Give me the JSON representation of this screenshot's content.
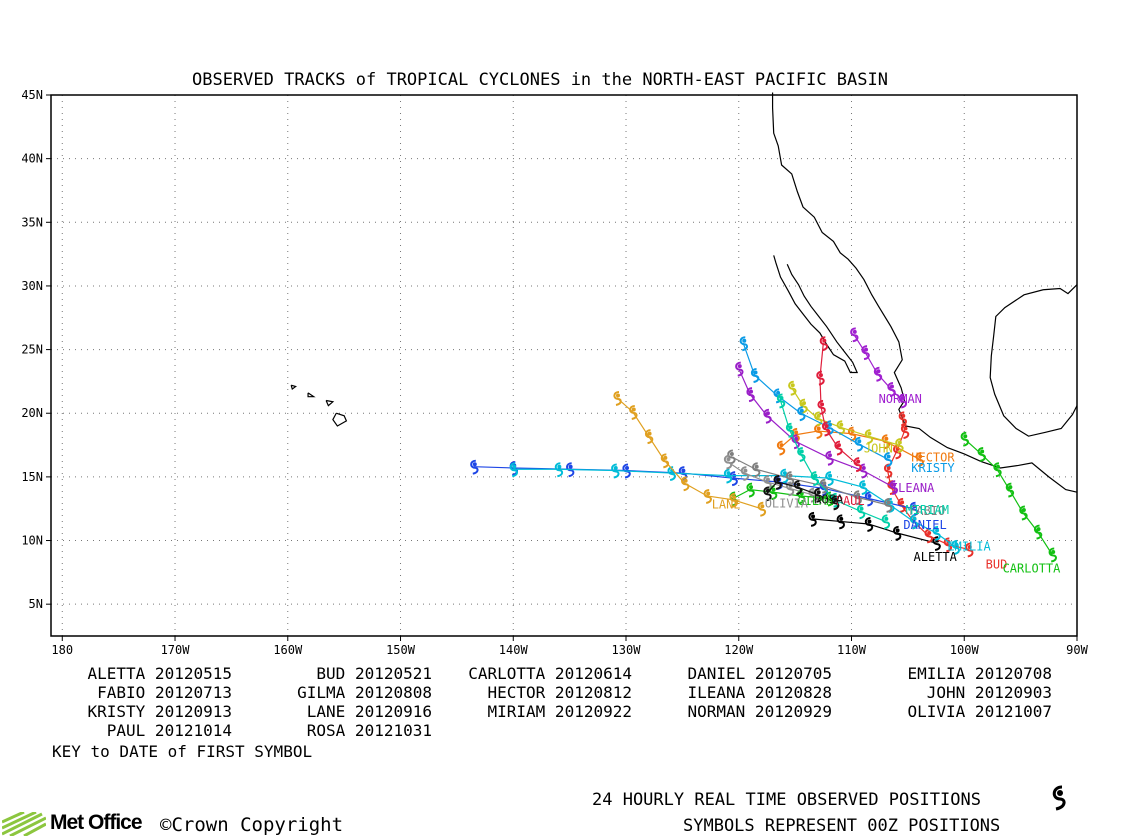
{
  "title": "OBSERVED TRACKS of TROPICAL CYCLONES in the NORTH-EAST PACIFIC BASIN",
  "axes": {
    "lon_labels": [
      "180",
      "170W",
      "160W",
      "150W",
      "140W",
      "130W",
      "120W",
      "110W",
      "100W",
      "90W"
    ],
    "lon_values": [
      -180,
      -170,
      -160,
      -150,
      -140,
      -130,
      -120,
      -110,
      -100,
      -90
    ],
    "lat_labels": [
      "5N",
      "10N",
      "15N",
      "20N",
      "25N",
      "30N",
      "35N",
      "40N",
      "45N"
    ],
    "lat_values": [
      5,
      10,
      15,
      20,
      25,
      30,
      35,
      40,
      45
    ],
    "lon_range": [
      -181,
      -90
    ],
    "lat_range": [
      2.5,
      45
    ],
    "grid": "dotted"
  },
  "storms": [
    {
      "name": "ALETTA",
      "date": "20120515",
      "color": "#000000",
      "points": [
        [
          -102.5,
          9.8
        ],
        [
          -106,
          10.6
        ],
        [
          -108.5,
          11.3
        ],
        [
          -111,
          11.5
        ],
        [
          -113.5,
          11.7
        ]
      ],
      "label_pos": [
        -104.5,
        8.4
      ]
    },
    {
      "name": "BUD",
      "date": "20120521",
      "color": "#e8302a",
      "points": [
        [
          -99.6,
          9.3
        ],
        [
          -101.5,
          9.7
        ],
        [
          -103.2,
          10.4
        ],
        [
          -104.5,
          11.5
        ],
        [
          -105.6,
          12.8
        ],
        [
          -106.5,
          14.2
        ],
        [
          -106.8,
          15.5
        ],
        [
          -106,
          17
        ],
        [
          -105.3,
          18.6
        ],
        [
          -105.5,
          19.6
        ]
      ],
      "label_pos": [
        -98.1,
        7.8
      ]
    },
    {
      "name": "CARLOTTA",
      "date": "20120614",
      "color": "#12c012",
      "points": [
        [
          -92.2,
          8.9
        ],
        [
          -93.5,
          10.7
        ],
        [
          -94.8,
          12.2
        ],
        [
          -96,
          14
        ],
        [
          -97.1,
          15.6
        ],
        [
          -98.5,
          16.8
        ],
        [
          -100,
          18
        ]
      ],
      "label_pos": [
        -96.6,
        7.5
      ]
    },
    {
      "name": "DANIEL",
      "date": "20120705",
      "color": "#1e46e6",
      "points": [
        [
          -104.5,
          12.5
        ],
        [
          -108.5,
          13.3
        ],
        [
          -112.5,
          14.1
        ],
        [
          -116.5,
          14.6
        ],
        [
          -120.5,
          14.9
        ],
        [
          -125,
          15.3
        ],
        [
          -130,
          15.5
        ],
        [
          -135,
          15.6
        ],
        [
          -140,
          15.7
        ],
        [
          -143.5,
          15.8
        ]
      ],
      "label_pos": [
        -105.4,
        10.9
      ]
    },
    {
      "name": "EMILIA",
      "date": "20120708",
      "color": "#00bcd8",
      "points": [
        [
          -100.8,
          9.5
        ],
        [
          -102.5,
          10.6
        ],
        [
          -104.5,
          11.5
        ],
        [
          -106.6,
          12.8
        ],
        [
          -109,
          14.2
        ],
        [
          -112,
          14.9
        ],
        [
          -116,
          15.1
        ],
        [
          -121,
          15.1
        ],
        [
          -126,
          15.3
        ],
        [
          -131,
          15.5
        ],
        [
          -136,
          15.6
        ],
        [
          -140,
          15.6
        ]
      ],
      "label_pos": [
        -101.5,
        9.2
      ]
    },
    {
      "name": "FABIO",
      "date": "20120713",
      "color": "#7f7f7f",
      "points": [
        [
          -106.8,
          12.8
        ],
        [
          -109.5,
          13.4
        ],
        [
          -112.5,
          14.3
        ],
        [
          -115.5,
          14.9
        ],
        [
          -118.5,
          15.6
        ],
        [
          -120.7,
          16.6
        ]
      ],
      "label_pos": [
        -104.9,
        12
      ]
    },
    {
      "name": "GILMA",
      "date": "20120808",
      "color": "#12c012",
      "points": [
        [
          -112,
          13.3
        ],
        [
          -114.5,
          13.5
        ],
        [
          -117,
          13.8
        ],
        [
          -119,
          14
        ],
        [
          -120.5,
          13.3
        ]
      ],
      "label_pos": [
        -114.8,
        12.8
      ]
    },
    {
      "name": "HECTOR",
      "date": "20120812",
      "color": "#f07a10",
      "points": [
        [
          -104,
          16.4
        ],
        [
          -107,
          17.8
        ],
        [
          -110,
          18.4
        ],
        [
          -113,
          18.6
        ],
        [
          -115,
          18.3
        ],
        [
          -116.3,
          17.3
        ]
      ],
      "label_pos": [
        -104.7,
        16.2
      ]
    },
    {
      "name": "ILEANA",
      "date": "20120828",
      "color": "#9a1fc8",
      "points": [
        [
          -106.3,
          14.2
        ],
        [
          -109,
          15.5
        ],
        [
          -112,
          16.5
        ],
        [
          -115,
          17.8
        ],
        [
          -117.5,
          19.8
        ],
        [
          -119,
          21.5
        ],
        [
          -120,
          23.5
        ]
      ],
      "label_pos": [
        -106.5,
        13.8
      ]
    },
    {
      "name": "JOHN",
      "date": "20120903",
      "color": "#c8c81e",
      "points": [
        [
          -105.8,
          17.5
        ],
        [
          -108.5,
          18.2
        ],
        [
          -111,
          18.9
        ],
        [
          -113,
          19.6
        ],
        [
          -114.3,
          20.6
        ],
        [
          -115.3,
          22
        ]
      ],
      "label_pos": [
        -108.9,
        16.9
      ]
    },
    {
      "name": "KRISTY",
      "date": "20120913",
      "color": "#0a9be6",
      "points": [
        [
          -106.8,
          16.4
        ],
        [
          -109.4,
          17.6
        ],
        [
          -112,
          18.9
        ],
        [
          -114.5,
          20
        ],
        [
          -116.6,
          21.4
        ],
        [
          -118.6,
          23
        ],
        [
          -119.6,
          25.5
        ]
      ],
      "label_pos": [
        -104.7,
        15.4
      ]
    },
    {
      "name": "LANE",
      "date": "20120916",
      "color": "#e0a020",
      "points": [
        [
          -118,
          12.5
        ],
        [
          -120.5,
          13.2
        ],
        [
          -122.8,
          13.5
        ],
        [
          -124.8,
          14.5
        ],
        [
          -126.6,
          16.3
        ],
        [
          -128,
          18.2
        ],
        [
          -129.4,
          20.1
        ],
        [
          -130.8,
          21.2
        ]
      ],
      "label_pos": [
        -122.4,
        12.5
      ]
    },
    {
      "name": "MIRIAM",
      "date": "20120922",
      "color": "#00cfa8",
      "points": [
        [
          -107,
          11.5
        ],
        [
          -109.2,
          12.3
        ],
        [
          -111.5,
          13.2
        ],
        [
          -113.3,
          14.9
        ],
        [
          -114.5,
          16.8
        ],
        [
          -115.5,
          18.7
        ],
        [
          -116.3,
          21
        ]
      ],
      "label_pos": [
        -105.2,
        12.1
      ]
    },
    {
      "name": "NORMAN",
      "date": "20120929",
      "color": "#a020d0",
      "points": [
        [
          -105.5,
          21
        ],
        [
          -106.5,
          21.9
        ],
        [
          -107.7,
          23.1
        ],
        [
          -108.8,
          24.8
        ],
        [
          -109.8,
          26.2
        ]
      ],
      "label_pos": [
        -107.6,
        20.8
      ]
    },
    {
      "name": "OLIVIA",
      "date": "20121007",
      "color": "#909090",
      "points": [
        [
          -113.5,
          13.6
        ],
        [
          -115.5,
          14.1
        ],
        [
          -117.5,
          14.6
        ],
        [
          -119.5,
          15.3
        ],
        [
          -121,
          16.2
        ]
      ],
      "label_pos": [
        -117.7,
        12.6
      ]
    },
    {
      "name": "PAUL",
      "date": "20121014",
      "color": "#e01e3c",
      "points": [
        [
          -109.5,
          16
        ],
        [
          -111.2,
          17.3
        ],
        [
          -112.3,
          18.8
        ],
        [
          -112.7,
          20.5
        ],
        [
          -112.8,
          22.8
        ],
        [
          -112.5,
          25.5
        ]
      ],
      "label_pos": [
        -111.4,
        12.8
      ]
    },
    {
      "name": "ROSA",
      "date": "20121031",
      "color": "#111111",
      "points": [
        [
          -111.5,
          13
        ],
        [
          -113,
          13.6
        ],
        [
          -114.8,
          14.2
        ],
        [
          -116.6,
          14.6
        ],
        [
          -117.5,
          13.7
        ]
      ],
      "label_pos": [
        -113.3,
        12.9
      ]
    }
  ],
  "key_heading": "KEY to DATE of FIRST SYMBOL",
  "footer": {
    "line1": "24 HOURLY REAL TIME OBSERVED POSITIONS",
    "line2": "SYMBOLS REPRESENT 00Z POSITIONS",
    "brand": "Met Office",
    "copyright": "©Crown Copyright"
  }
}
